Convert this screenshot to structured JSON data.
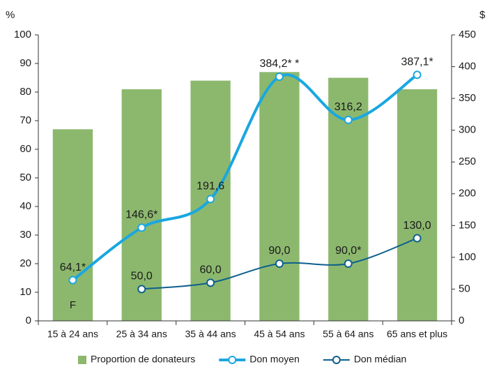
{
  "chart_data": {
    "type": "bar_line",
    "y_label": "%",
    "y2_label": "$",
    "categories": [
      "15 à 24 ans",
      "25 à 34 ans",
      "35 à 44 ans",
      "45 à 54 ans",
      "55 à 64 ans",
      "65 ans et plus"
    ],
    "series": [
      {
        "name": "Proportion de donateurs",
        "type": "bar",
        "color": "#8cb86e",
        "values": [
          67,
          81,
          84,
          87,
          85,
          81
        ]
      },
      {
        "name": "Don moyen",
        "type": "line",
        "axis": "y2",
        "color": "#1aa7e0",
        "values": [
          64.1,
          146.6,
          191.6,
          384.2,
          316.2,
          387.1
        ],
        "value_labels": [
          "64,1*",
          "146,6*",
          "191,6",
          "384,2* *",
          "316,2",
          "387,1*"
        ]
      },
      {
        "name": "Don médian",
        "type": "line",
        "axis": "y2",
        "color": "#0d5f8e",
        "values": [
          null,
          50.0,
          60.0,
          90.0,
          90.0,
          130.0
        ],
        "value_labels": [
          null,
          "50,0",
          "60,0",
          "90,0",
          "90,0*",
          "130,0"
        ]
      }
    ],
    "annotation": "F",
    "ylim": [
      0,
      100
    ],
    "yticks": [
      0,
      10,
      20,
      30,
      40,
      50,
      60,
      70,
      80,
      90,
      100
    ],
    "y2lim": [
      0,
      450
    ],
    "y2ticks": [
      0,
      50,
      100,
      150,
      200,
      250,
      300,
      350,
      400,
      450
    ],
    "legend": "bottom",
    "grid": false
  }
}
